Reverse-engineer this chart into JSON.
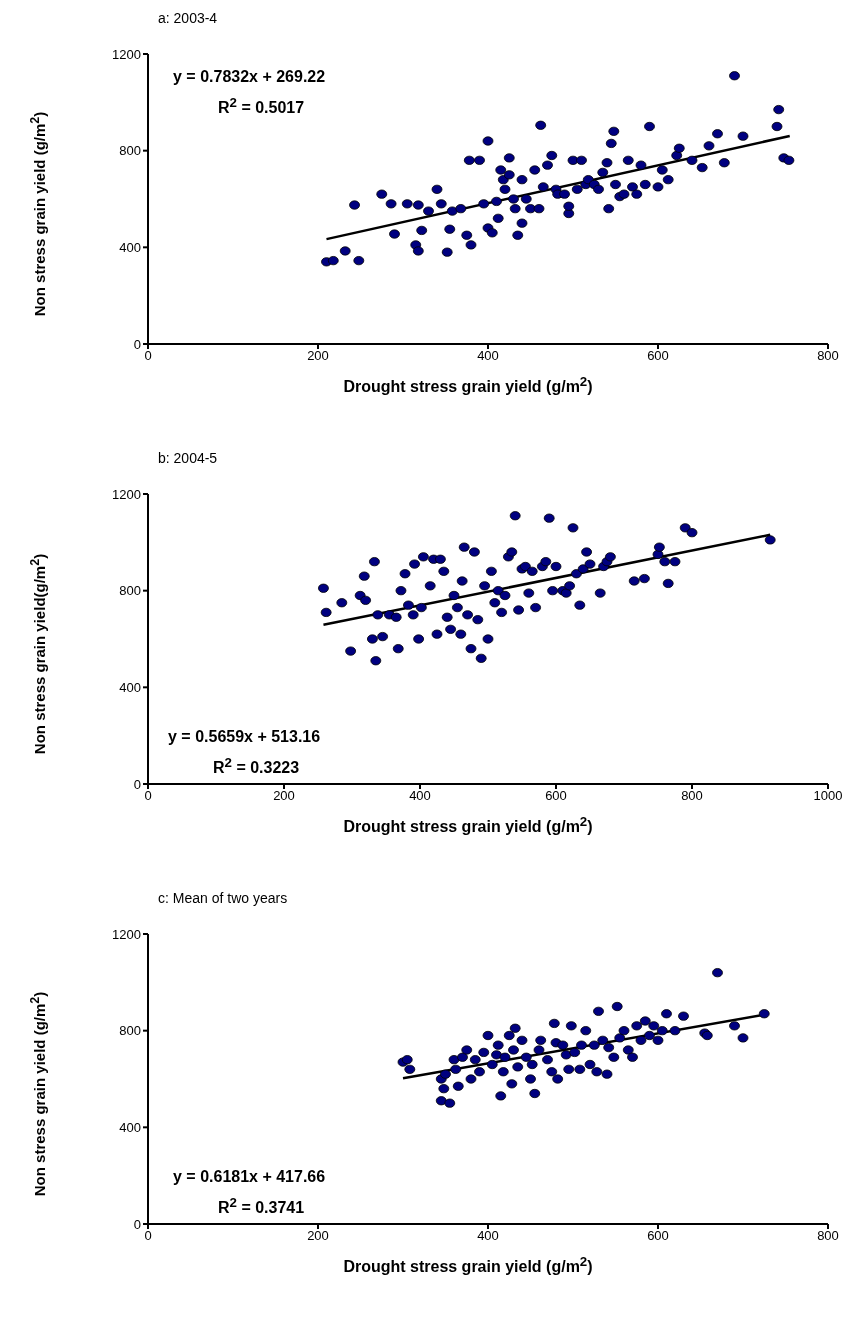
{
  "chart_data": [
    {
      "type": "scatter",
      "title": "a: 2003-4",
      "xlabel": "Drought stress grain yield (g/m$^{2}$)",
      "ylabel": "Non stress grain yield (g/m$^{2}$)",
      "annotations": [
        "y = 0.7832x + 269.22",
        "R$^{2}$ = 0.5017"
      ],
      "xlim": [
        0,
        800
      ],
      "xticks": [
        0,
        200,
        400,
        600,
        800
      ],
      "ylim": [
        0,
        1200
      ],
      "yticks": [
        0,
        400,
        800,
        1200
      ],
      "grid": false,
      "series": [
        {
          "marker": "circle",
          "color": "#000080",
          "x": [
            210,
            218,
            232,
            243,
            248,
            275,
            286,
            290,
            305,
            315,
            318,
            318,
            322,
            330,
            340,
            345,
            352,
            355,
            358,
            368,
            375,
            380,
            378,
            390,
            395,
            400,
            400,
            405,
            410,
            412,
            415,
            418,
            420,
            425,
            425,
            430,
            432,
            435,
            440,
            440,
            445,
            450,
            455,
            460,
            462,
            465,
            470,
            475,
            480,
            482,
            490,
            495,
            495,
            500,
            505,
            510,
            515,
            518,
            525,
            530,
            535,
            540,
            542,
            545,
            548,
            550,
            555,
            560,
            565,
            570,
            575,
            580,
            585,
            590,
            600,
            605,
            612,
            622,
            625,
            640,
            652,
            660,
            670,
            678,
            690,
            700,
            740,
            742,
            748,
            754
          ],
          "values": [
            340,
            345,
            385,
            575,
            345,
            620,
            580,
            455,
            580,
            410,
            575,
            385,
            470,
            550,
            640,
            580,
            380,
            475,
            550,
            560,
            450,
            410,
            760,
            760,
            580,
            840,
            480,
            460,
            590,
            520,
            720,
            680,
            640,
            700,
            770,
            600,
            560,
            450,
            680,
            500,
            600,
            560,
            720,
            560,
            905,
            650,
            740,
            780,
            640,
            620,
            620,
            540,
            570,
            760,
            640,
            760,
            660,
            680,
            660,
            640,
            710,
            750,
            560,
            830,
            880,
            660,
            610,
            620,
            760,
            650,
            620,
            740,
            660,
            900,
            650,
            720,
            680,
            780,
            810,
            760,
            730,
            820,
            870,
            750,
            1110,
            860,
            900,
            970,
            770,
            760
          ]
        },
        {
          "type": "line",
          "marker": "none",
          "color": "#000000",
          "x": [
            210,
            755
          ],
          "values": [
            434,
            861
          ]
        }
      ]
    },
    {
      "type": "scatter",
      "title": "b: 2004-5",
      "xlabel": "Drought stress grain yield (g/m$^{2}$)",
      "ylabel": "Non stress grain yield(g/m$^{2}$)",
      "annotations": [
        "y = 0.5659x + 513.16",
        "R$^{2}$ = 0.3223"
      ],
      "xlim": [
        0,
        1000
      ],
      "xticks": [
        0,
        200,
        400,
        600,
        800,
        1000
      ],
      "ylim": [
        0,
        1200
      ],
      "yticks": [
        0,
        400,
        800,
        1200
      ],
      "grid": false,
      "series": [
        {
          "marker": "circle",
          "color": "#000080",
          "x": [
            258,
            262,
            285,
            298,
            312,
            318,
            320,
            333,
            335,
            330,
            338,
            345,
            355,
            365,
            368,
            372,
            378,
            383,
            390,
            392,
            398,
            402,
            405,
            415,
            420,
            425,
            430,
            435,
            440,
            445,
            450,
            455,
            460,
            462,
            465,
            470,
            475,
            480,
            485,
            490,
            495,
            500,
            505,
            510,
            515,
            520,
            525,
            530,
            535,
            540,
            545,
            550,
            555,
            560,
            565,
            570,
            580,
            585,
            590,
            595,
            600,
            610,
            615,
            620,
            625,
            630,
            635,
            640,
            645,
            650,
            665,
            670,
            675,
            680,
            715,
            730,
            750,
            752,
            760,
            765,
            775,
            790,
            800,
            915
          ],
          "values": [
            810,
            710,
            750,
            550,
            780,
            860,
            760,
            920,
            510,
            600,
            700,
            610,
            700,
            690,
            560,
            800,
            870,
            740,
            700,
            910,
            600,
            730,
            940,
            820,
            930,
            620,
            930,
            880,
            690,
            640,
            780,
            730,
            620,
            840,
            980,
            700,
            560,
            960,
            680,
            520,
            820,
            600,
            880,
            750,
            800,
            710,
            780,
            940,
            960,
            1110,
            720,
            890,
            900,
            790,
            880,
            730,
            900,
            920,
            1100,
            800,
            900,
            800,
            790,
            820,
            1060,
            870,
            740,
            890,
            960,
            910,
            790,
            900,
            920,
            940,
            840,
            850,
            950,
            980,
            920,
            830,
            920,
            1060,
            1040,
            1010
          ]
        },
        {
          "type": "line",
          "marker": "none",
          "color": "#000000",
          "x": [
            258,
            915
          ],
          "values": [
            659,
            1031
          ]
        }
      ]
    },
    {
      "type": "scatter",
      "title": "c: Mean of two years",
      "xlabel": "Drought stress grain yield (g/m$^{2}$)",
      "ylabel": "Non stress grain yield (g/m$^{2}$)",
      "annotations": [
        "y = 0.6181x + 417.66",
        "R$^{2}$ = 0.3741"
      ],
      "xlim": [
        0,
        800
      ],
      "xticks": [
        0,
        200,
        400,
        600,
        800
      ],
      "ylim": [
        0,
        1200
      ],
      "yticks": [
        0,
        400,
        800,
        1200
      ],
      "grid": false,
      "series": [
        {
          "marker": "circle",
          "color": "#000080",
          "x": [
            300,
            305,
            308,
            345,
            348,
            345,
            355,
            350,
            360,
            362,
            365,
            370,
            375,
            380,
            385,
            390,
            395,
            400,
            405,
            410,
            412,
            415,
            418,
            420,
            425,
            428,
            430,
            432,
            435,
            440,
            445,
            450,
            452,
            455,
            460,
            462,
            470,
            475,
            478,
            480,
            482,
            488,
            492,
            495,
            498,
            502,
            508,
            510,
            515,
            520,
            525,
            528,
            530,
            535,
            540,
            542,
            548,
            552,
            555,
            560,
            565,
            570,
            575,
            580,
            585,
            590,
            595,
            600,
            605,
            610,
            620,
            630,
            655,
            658,
            670,
            690,
            700,
            725
          ],
          "values": [
            670,
            680,
            640,
            600,
            560,
            510,
            500,
            620,
            680,
            640,
            570,
            690,
            720,
            600,
            680,
            630,
            710,
            780,
            660,
            700,
            740,
            530,
            630,
            690,
            780,
            580,
            720,
            810,
            650,
            760,
            690,
            600,
            660,
            540,
            720,
            760,
            680,
            630,
            830,
            750,
            600,
            740,
            700,
            640,
            820,
            710,
            640,
            740,
            800,
            660,
            740,
            630,
            880,
            760,
            620,
            730,
            690,
            900,
            770,
            800,
            720,
            690,
            820,
            760,
            840,
            780,
            820,
            760,
            800,
            870,
            800,
            860,
            790,
            780,
            1040,
            820,
            770,
            870
          ]
        },
        {
          "type": "line",
          "marker": "none",
          "color": "#000000",
          "x": [
            300,
            725
          ],
          "values": [
            603,
            866
          ]
        }
      ]
    }
  ]
}
